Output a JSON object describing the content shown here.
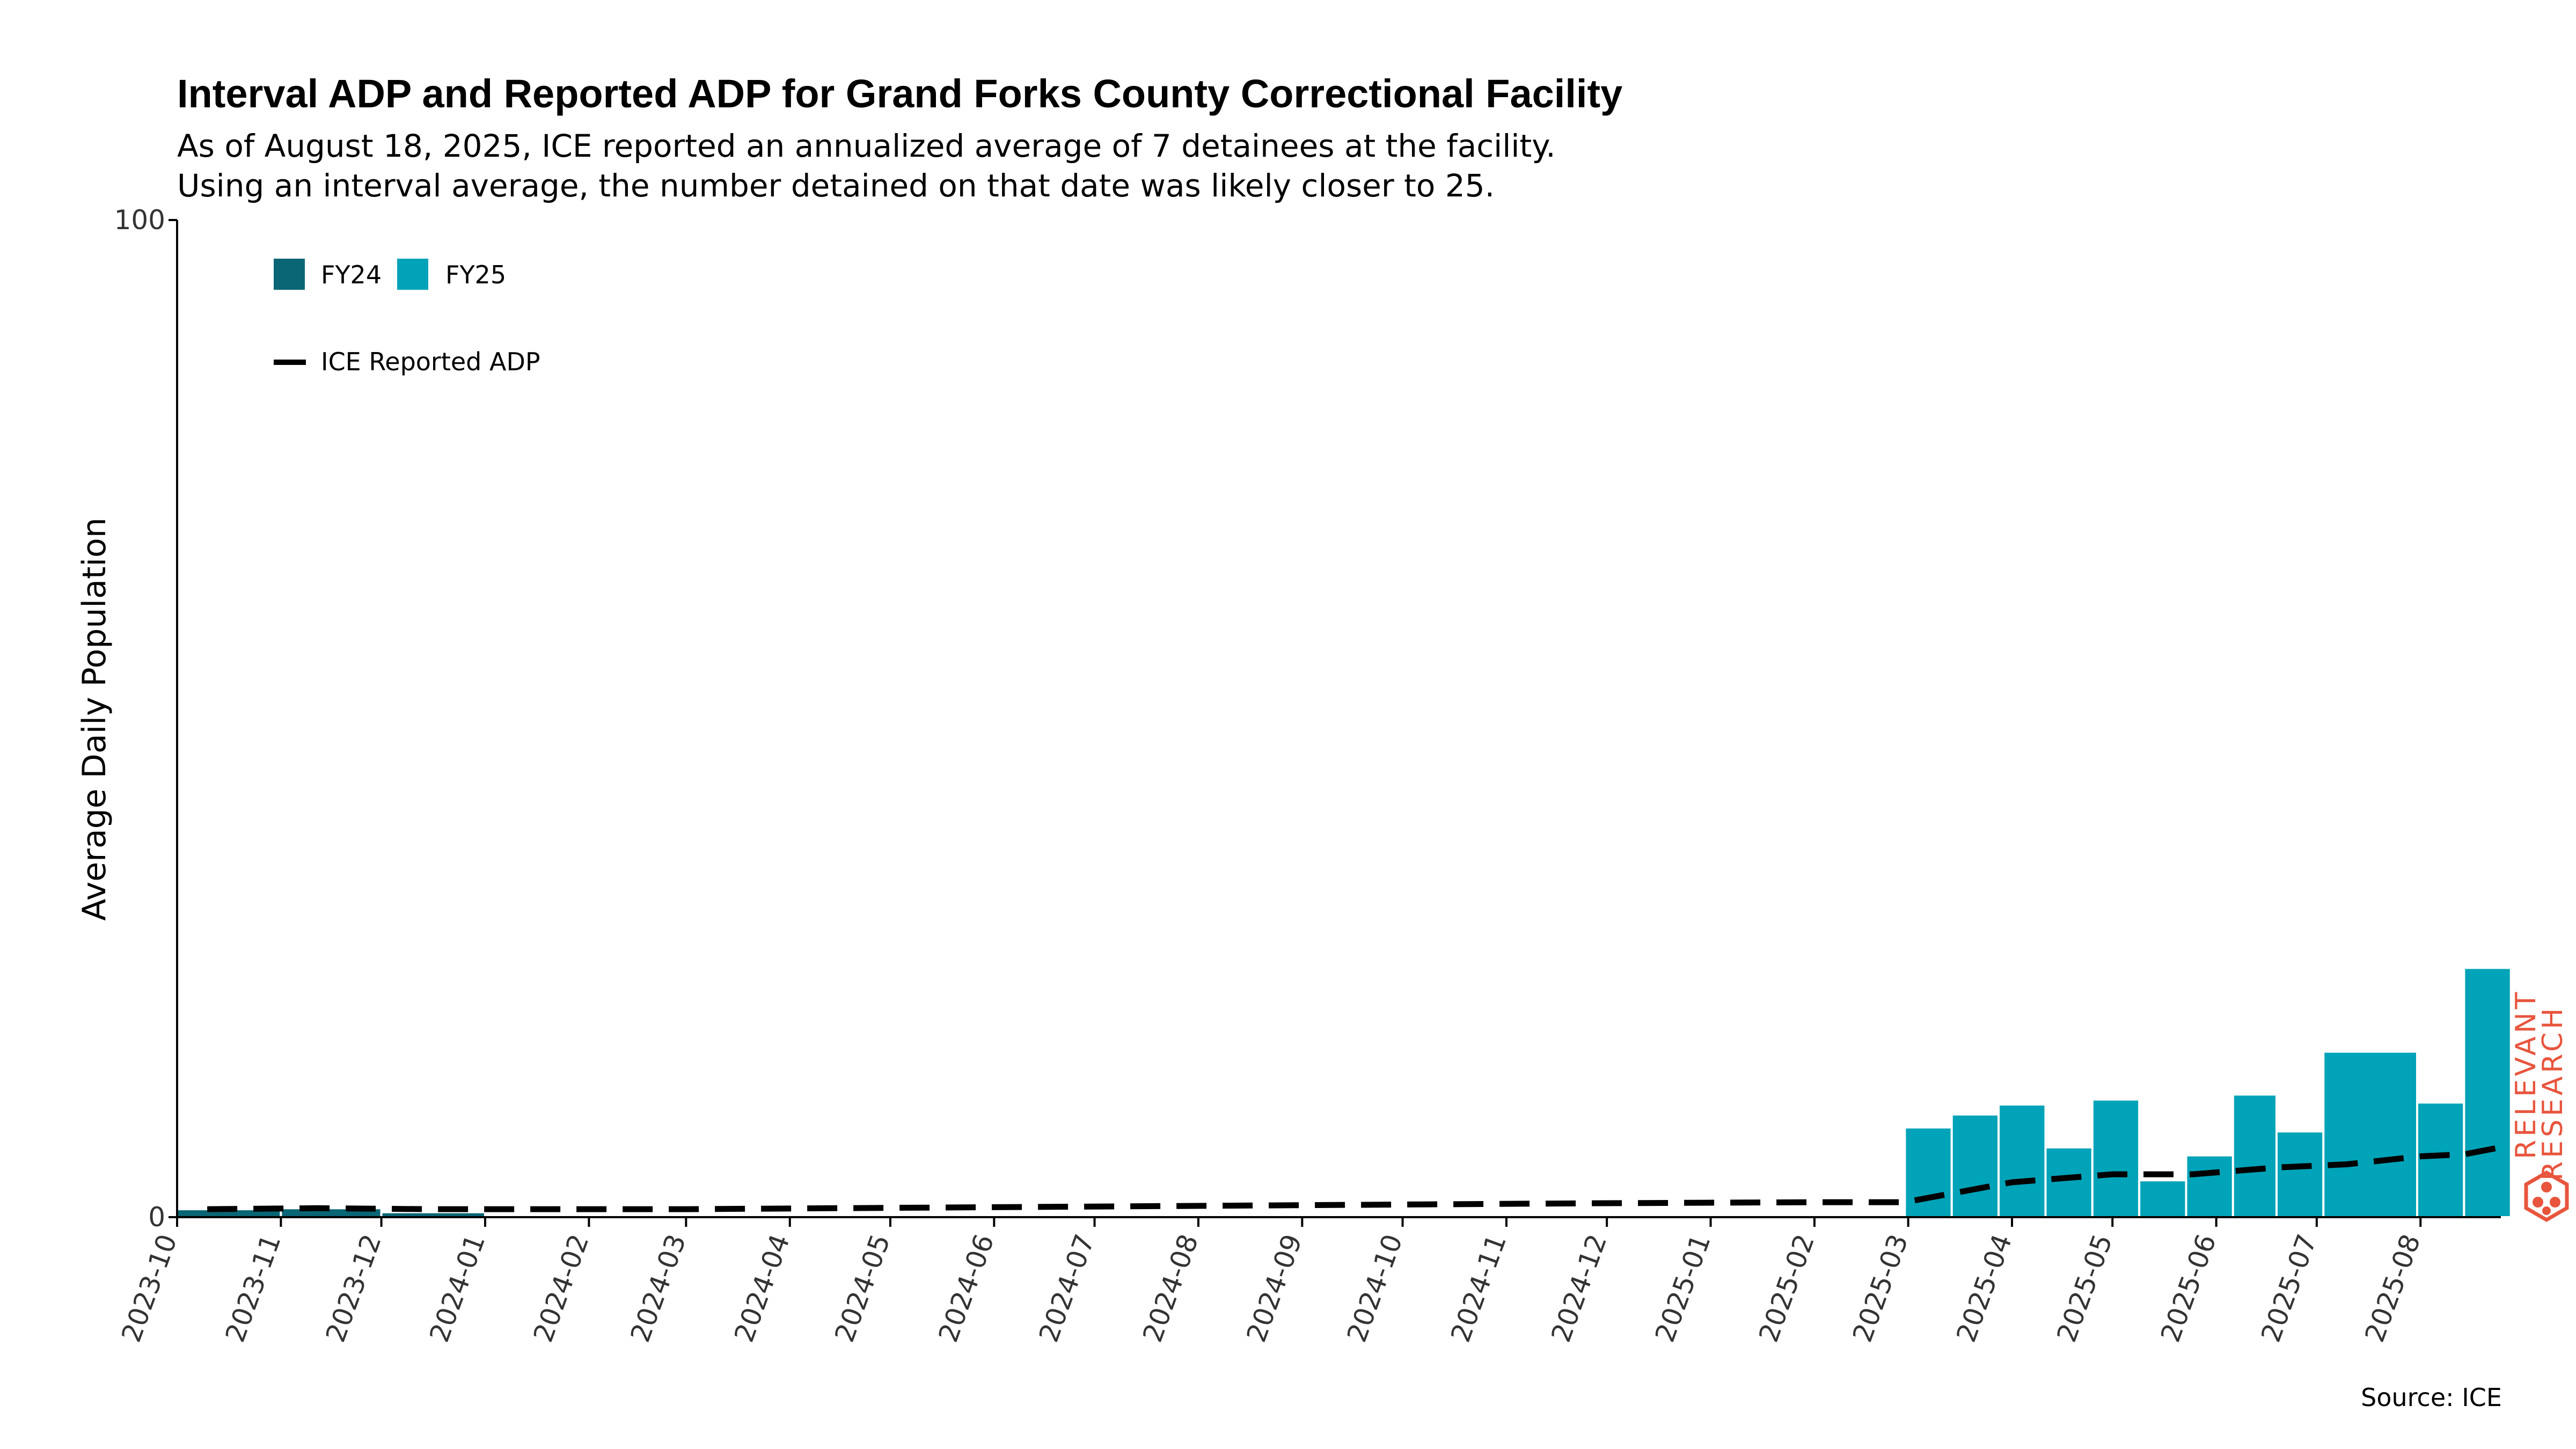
{
  "chart_data": {
    "type": "bar",
    "title": "Interval ADP and Reported ADP for Grand Forks County Correctional Facility",
    "subtitle_lines": [
      "As of August 18, 2025, ICE reported an annualized average of 7 detainees at the facility.",
      "Using an interval average, the number detained on that date was likely closer to 25."
    ],
    "ylabel": "Average Daily Population",
    "xlabel": "",
    "ylim": [
      0,
      100
    ],
    "yticks": [
      0,
      100
    ],
    "x_range": [
      "2023-10-01",
      "2025-08-25"
    ],
    "xtick_labels": [
      "2023-10",
      "2023-11",
      "2023-12",
      "2024-01",
      "2024-02",
      "2024-03",
      "2024-04",
      "2024-05",
      "2024-06",
      "2024-07",
      "2024-08",
      "2024-09",
      "2024-10",
      "2024-11",
      "2024-12",
      "2025-01",
      "2025-02",
      "2025-03",
      "2025-04",
      "2025-05",
      "2025-06",
      "2025-07",
      "2025-08"
    ],
    "grid": false,
    "legend_position": "top-left",
    "colors": {
      "FY24": "#0a6675",
      "FY25": "#00a3b8",
      "reported": "#000000"
    },
    "bars": [
      {
        "start": "2023-10-01",
        "end": "2023-11-01",
        "value": 0.8,
        "series": "FY24"
      },
      {
        "start": "2023-11-01",
        "end": "2023-12-01",
        "value": 0.9,
        "series": "FY24"
      },
      {
        "start": "2023-12-01",
        "end": "2024-01-01",
        "value": 0.5,
        "series": "FY24"
      },
      {
        "start": "2025-02-28",
        "end": "2025-03-14",
        "value": 9,
        "series": "FY25"
      },
      {
        "start": "2025-03-14",
        "end": "2025-03-28",
        "value": 10.3,
        "series": "FY25"
      },
      {
        "start": "2025-03-28",
        "end": "2025-04-11",
        "value": 11.3,
        "series": "FY25"
      },
      {
        "start": "2025-04-11",
        "end": "2025-04-25",
        "value": 7,
        "series": "FY25"
      },
      {
        "start": "2025-04-25",
        "end": "2025-05-09",
        "value": 11.8,
        "series": "FY25"
      },
      {
        "start": "2025-05-09",
        "end": "2025-05-23",
        "value": 3.7,
        "series": "FY25"
      },
      {
        "start": "2025-05-23",
        "end": "2025-06-06",
        "value": 6.2,
        "series": "FY25"
      },
      {
        "start": "2025-06-06",
        "end": "2025-06-19",
        "value": 12.3,
        "series": "FY25"
      },
      {
        "start": "2025-06-19",
        "end": "2025-07-03",
        "value": 8.6,
        "series": "FY25"
      },
      {
        "start": "2025-07-03",
        "end": "2025-07-31",
        "value": 16.6,
        "series": "FY25"
      },
      {
        "start": "2025-07-31",
        "end": "2025-08-14",
        "value": 11.5,
        "series": "FY25"
      },
      {
        "start": "2025-08-14",
        "end": "2025-08-28",
        "value": 25,
        "series": "FY25"
      }
    ],
    "line_series": {
      "name": "ICE Reported ADP",
      "style": "dashed",
      "points": [
        {
          "x": "2023-10-10",
          "y": 0.8
        },
        {
          "x": "2023-11-12",
          "y": 0.9
        },
        {
          "x": "2023-12-15",
          "y": 0.8
        },
        {
          "x": "2024-03-01",
          "y": 0.8
        },
        {
          "x": "2024-06-01",
          "y": 1.0
        },
        {
          "x": "2024-09-01",
          "y": 1.2
        },
        {
          "x": "2024-12-01",
          "y": 1.4
        },
        {
          "x": "2025-02-01",
          "y": 1.5
        },
        {
          "x": "2025-02-28",
          "y": 1.5
        },
        {
          "x": "2025-04-01",
          "y": 3.5
        },
        {
          "x": "2025-05-01",
          "y": 4.3
        },
        {
          "x": "2025-05-25",
          "y": 4.3
        },
        {
          "x": "2025-06-20",
          "y": 5.0
        },
        {
          "x": "2025-07-10",
          "y": 5.3
        },
        {
          "x": "2025-08-01",
          "y": 6.1
        },
        {
          "x": "2025-08-14",
          "y": 6.3
        },
        {
          "x": "2025-08-28",
          "y": 7.2
        }
      ]
    },
    "legend": {
      "FY24": "FY24",
      "FY25": "FY25",
      "reported": "ICE Reported ADP"
    }
  },
  "source": "Source: ICE",
  "logo": {
    "line1": "RELEVANT",
    "line2": "RESEARCH",
    "color": "#e8553d"
  }
}
